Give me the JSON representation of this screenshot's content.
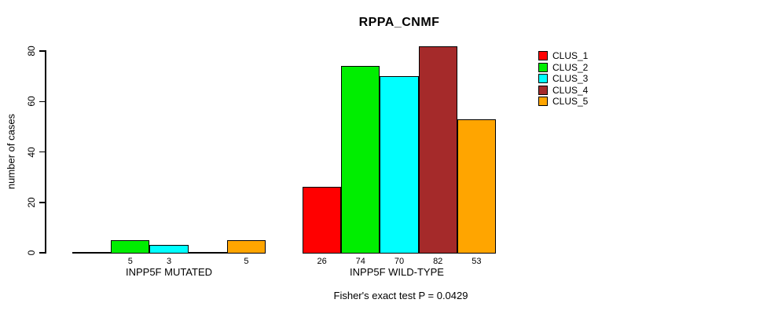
{
  "chart_data": {
    "type": "bar",
    "title": "RPPA_CNMF",
    "ylabel": "number of cases",
    "xlabel": "",
    "ylim": [
      0,
      80
    ],
    "yticks": [
      0,
      20,
      40,
      60,
      80
    ],
    "grid": false,
    "legend_position": "right",
    "footer": "Fisher's exact test P = 0.0429",
    "categories": [
      "INPP5F MUTATED",
      "INPP5F WILD-TYPE"
    ],
    "series": [
      {
        "name": "CLUS_1",
        "color": "#FF0000",
        "values": [
          0,
          26
        ]
      },
      {
        "name": "CLUS_2",
        "color": "#00EE00",
        "values": [
          5,
          74
        ]
      },
      {
        "name": "CLUS_3",
        "color": "#00FFFF",
        "values": [
          3,
          70
        ]
      },
      {
        "name": "CLUS_4",
        "color": "#A52A2A",
        "values": [
          0,
          82
        ]
      },
      {
        "name": "CLUS_5",
        "color": "#FFA500",
        "values": [
          5,
          53
        ]
      }
    ],
    "groups": [
      {
        "label": "INPP5F MUTATED",
        "bars": [
          {
            "cluster": "CLUS_1",
            "value": 0,
            "display_label": ""
          },
          {
            "cluster": "CLUS_2",
            "value": 5,
            "display_label": "5"
          },
          {
            "cluster": "CLUS_3",
            "value": 3,
            "display_label": "3"
          },
          {
            "cluster": "CLUS_4",
            "value": 0,
            "display_label": ""
          },
          {
            "cluster": "CLUS_5",
            "value": 5,
            "display_label": "5"
          }
        ]
      },
      {
        "label": "INPP5F WILD-TYPE",
        "bars": [
          {
            "cluster": "CLUS_1",
            "value": 26,
            "display_label": "26"
          },
          {
            "cluster": "CLUS_2",
            "value": 74,
            "display_label": "74"
          },
          {
            "cluster": "CLUS_3",
            "value": 70,
            "display_label": "70"
          },
          {
            "cluster": "CLUS_4",
            "value": 82,
            "display_label": "82"
          },
          {
            "cluster": "CLUS_5",
            "value": 53,
            "display_label": "53"
          }
        ]
      }
    ],
    "legend": [
      {
        "label": "CLUS_1",
        "color": "#FF0000"
      },
      {
        "label": "CLUS_2",
        "color": "#00EE00"
      },
      {
        "label": "CLUS_3",
        "color": "#00FFFF"
      },
      {
        "label": "CLUS_4",
        "color": "#A52A2A"
      },
      {
        "label": "CLUS_5",
        "color": "#FFA500"
      }
    ]
  }
}
